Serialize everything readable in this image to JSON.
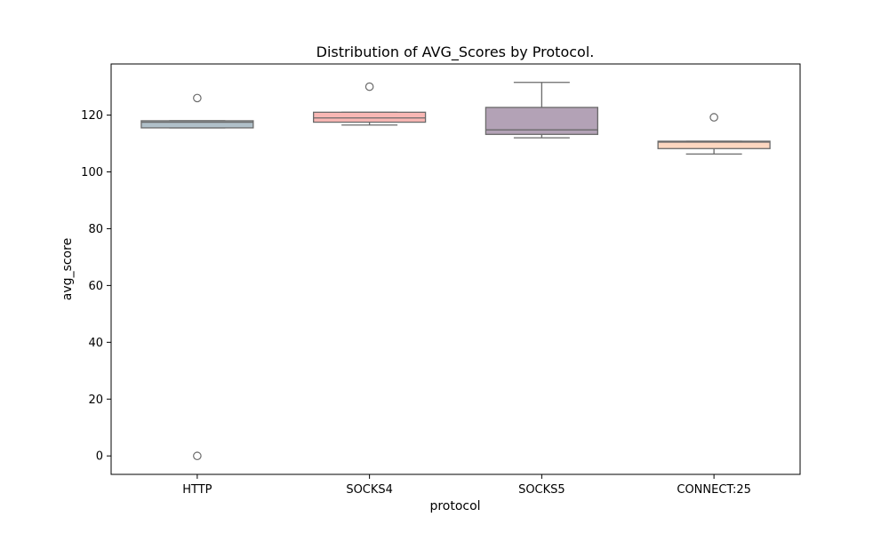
{
  "chart_data": {
    "type": "box",
    "title": "Distribution of AVG_Scores by Protocol.",
    "xlabel": "protocol",
    "ylabel": "avg_score",
    "ylim": [
      -6.5,
      138
    ],
    "yticks": [
      0,
      20,
      40,
      60,
      80,
      100,
      120
    ],
    "grid": false,
    "categories": [
      "HTTP",
      "SOCKS4",
      "SOCKS5",
      "CONNECT:25"
    ],
    "boxes": [
      {
        "category": "HTTP",
        "color": "#b0c0c9",
        "whisker_low": 115.5,
        "q1": 115.5,
        "median": 117.5,
        "q3": 118.0,
        "whisker_high": 118.0,
        "outliers": [
          126.0,
          0.0
        ]
      },
      {
        "category": "SOCKS4",
        "color": "#f9b7b4",
        "whisker_low": 116.5,
        "q1": 117.5,
        "median": 119.0,
        "q3": 121.0,
        "whisker_high": 121.0,
        "outliers": [
          130.0
        ]
      },
      {
        "category": "SOCKS5",
        "color": "#b3a2b6",
        "whisker_low": 112.0,
        "q1": 113.2,
        "median": 114.8,
        "q3": 122.7,
        "whisker_high": 131.5,
        "outliers": []
      },
      {
        "category": "CONNECT:25",
        "color": "#fdd7c0",
        "whisker_low": 106.3,
        "q1": 108.2,
        "median": 110.5,
        "q3": 110.8,
        "whisker_high": 110.8,
        "outliers": [
          119.2
        ]
      }
    ]
  }
}
